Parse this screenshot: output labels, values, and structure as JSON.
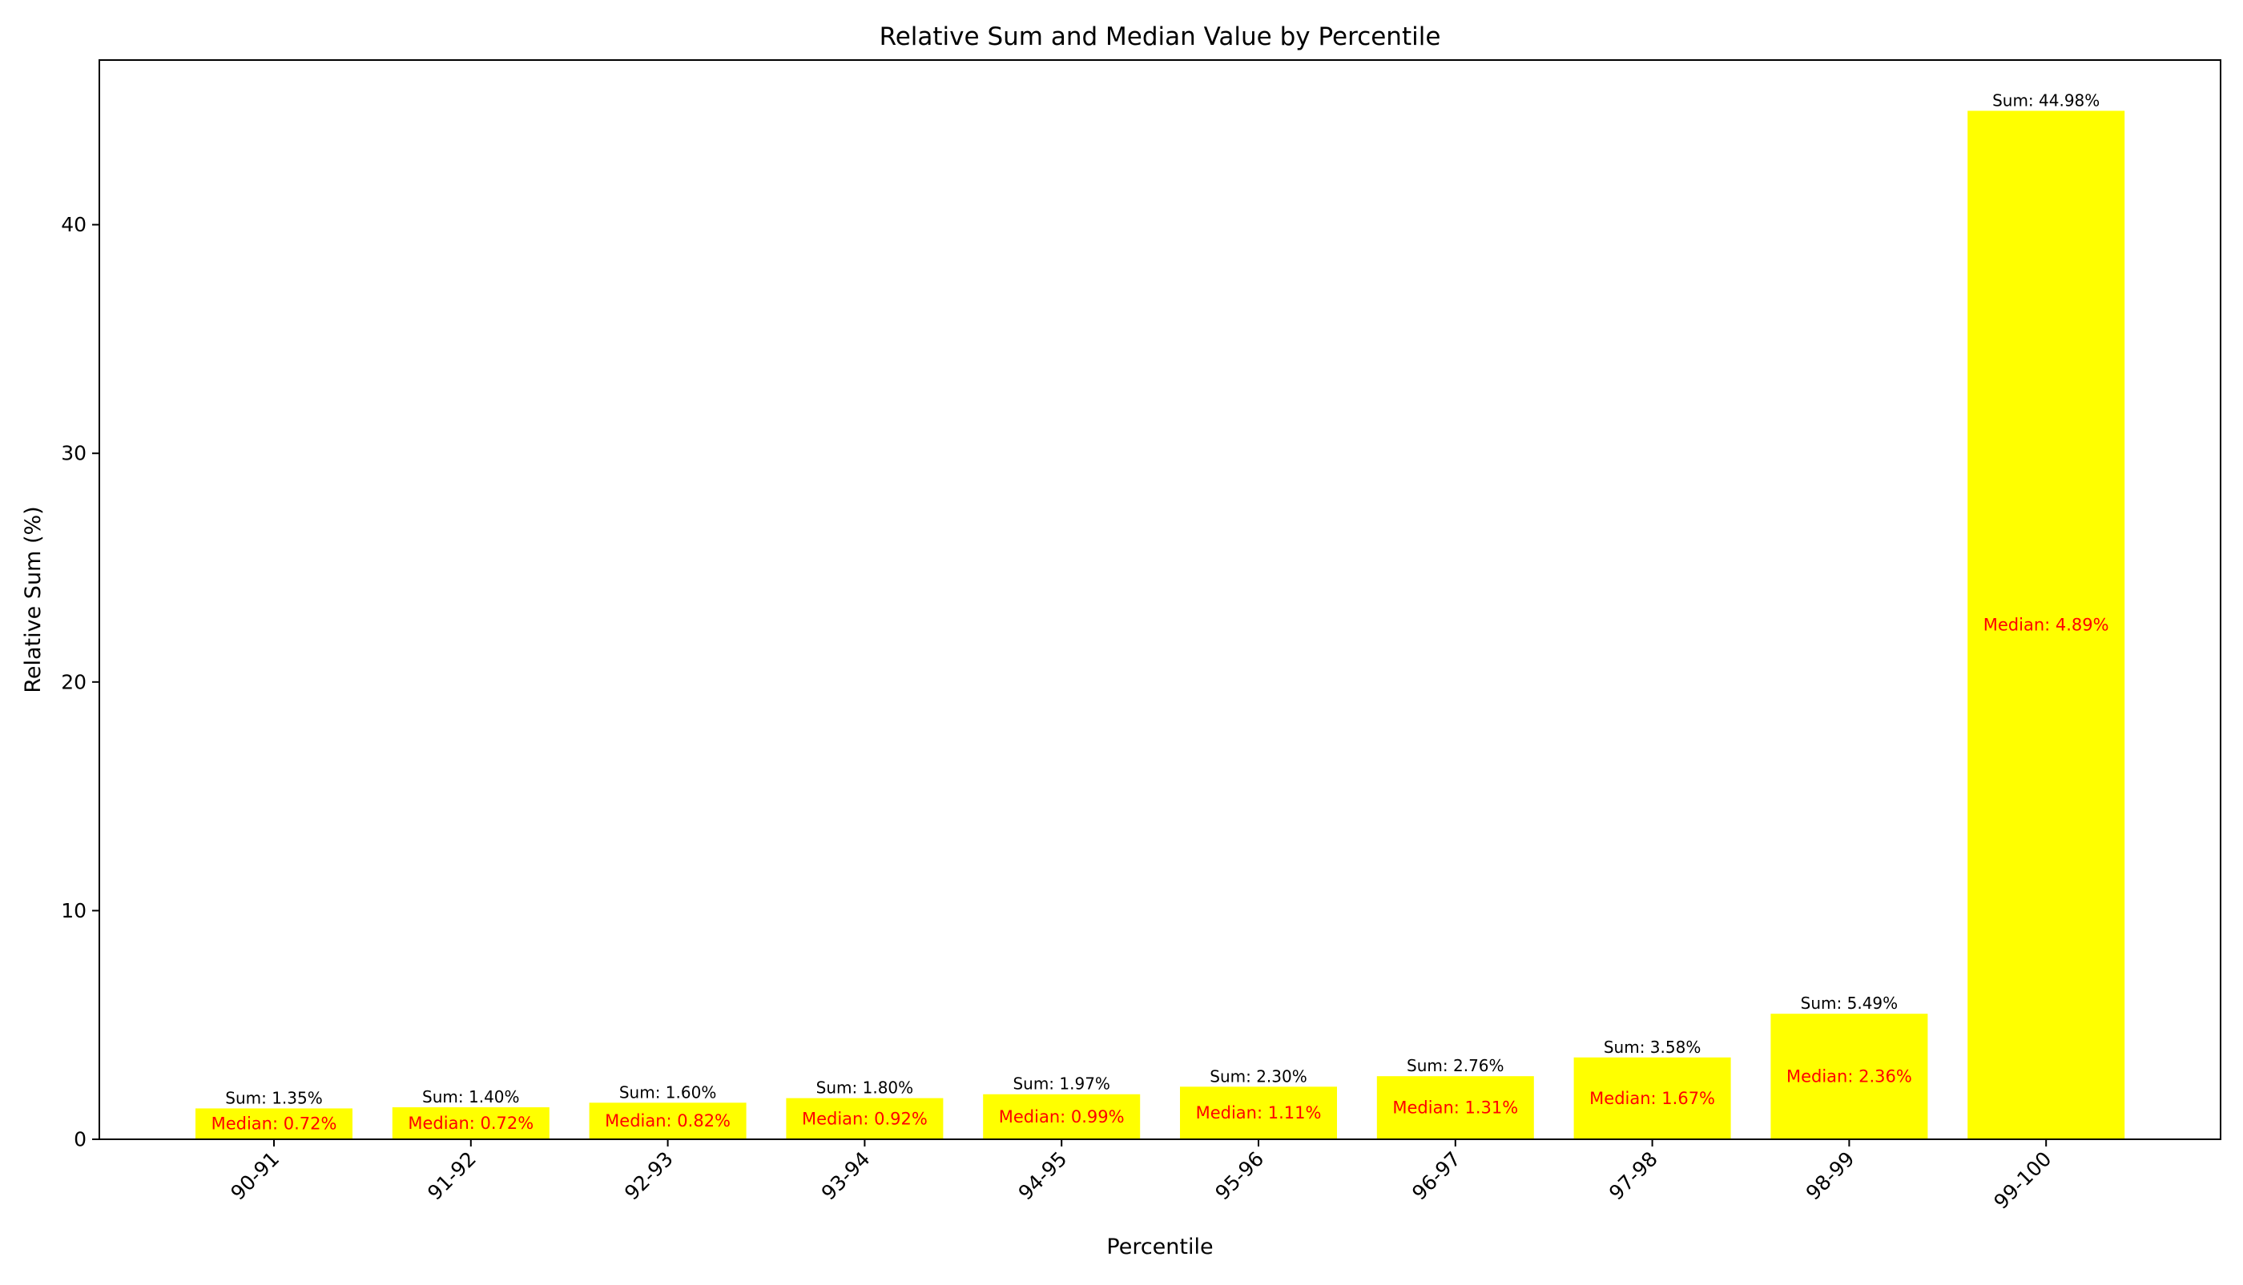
{
  "chart_data": {
    "type": "bar",
    "title": "Relative Sum and Median Value by Percentile",
    "xlabel": "Percentile",
    "ylabel": "Relative Sum (%)",
    "ylim": [
      0,
      47.2
    ],
    "yticks": [
      0,
      10,
      20,
      30,
      40
    ],
    "grid": false,
    "categories": [
      "90-91",
      "91-92",
      "92-93",
      "93-94",
      "94-95",
      "95-96",
      "96-97",
      "97-98",
      "98-99",
      "99-100"
    ],
    "values": [
      1.35,
      1.4,
      1.6,
      1.8,
      1.97,
      2.3,
      2.76,
      3.58,
      5.49,
      44.98
    ],
    "medians": [
      0.72,
      0.72,
      0.82,
      0.92,
      0.99,
      1.11,
      1.31,
      1.67,
      2.36,
      4.89
    ],
    "sum_labels": [
      "Sum: 1.35%",
      "Sum: 1.40%",
      "Sum: 1.60%",
      "Sum: 1.80%",
      "Sum: 1.97%",
      "Sum: 2.30%",
      "Sum: 2.76%",
      "Sum: 3.58%",
      "Sum: 5.49%",
      "Sum: 44.98%"
    ],
    "median_labels": [
      "Median: 0.72%",
      "Median: 0.72%",
      "Median: 0.82%",
      "Median: 0.92%",
      "Median: 0.99%",
      "Median: 1.11%",
      "Median: 1.31%",
      "Median: 1.67%",
      "Median: 2.36%",
      "Median: 4.89%"
    ],
    "colors": {
      "bar": "#ffff00",
      "median_text": "#ff0000",
      "axis": "#000000",
      "text": "#000000"
    }
  }
}
